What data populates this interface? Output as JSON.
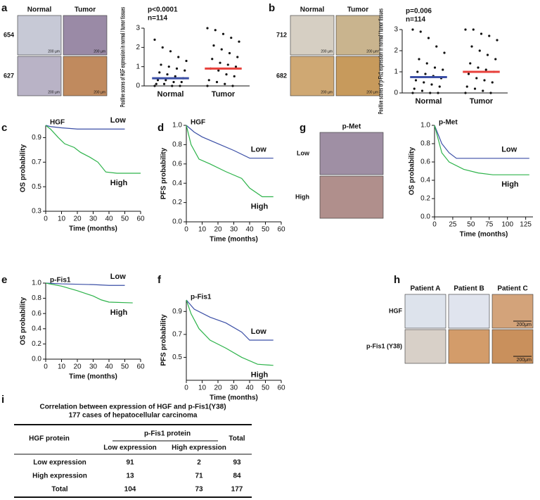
{
  "panel_labels": [
    "a",
    "b",
    "c",
    "d",
    "g",
    "e",
    "f",
    "h",
    "i"
  ],
  "scale_bar": "200 µm",
  "images": [
    {
      "columns": [
        "Normal",
        "Tumor"
      ],
      "rows": [
        "654",
        "627"
      ]
    },
    {
      "columns": [
        "Normal",
        "Tumor"
      ],
      "rows": [
        "712",
        "682"
      ]
    },
    {
      "title": "p-Met",
      "rows": [
        "Low",
        "High"
      ]
    },
    {
      "columns": [
        "Patient A",
        "Patient B",
        "Patient C"
      ],
      "rows": [
        "HGF",
        "p-Fis1 (Y38)"
      ],
      "scale_bar": "200μm"
    }
  ],
  "chart_data": [
    {
      "type": "dot",
      "ylabel": "Positive scores of HGF expression in normal / tumor tissues",
      "annotations": [
        "p<0.0001",
        "n=114"
      ],
      "categories": [
        "Normal",
        "Tumor"
      ],
      "colors": [
        "#3b4fa6",
        "#e8403b"
      ],
      "means": [
        0.4,
        0.9
      ],
      "points": [
        [
          0,
          0,
          0,
          0.1,
          0.1,
          0.2,
          0.2,
          0.3,
          0.3,
          0.4,
          0.5,
          0.6,
          0.7,
          0.8,
          0.9,
          1.0,
          1.1,
          1.3,
          1.5,
          1.8,
          2.0,
          2.4
        ],
        [
          0,
          0,
          0.1,
          0.2,
          0.3,
          0.5,
          0.6,
          0.8,
          0.9,
          1.0,
          1.1,
          1.2,
          1.4,
          1.5,
          1.7,
          1.9,
          2.1,
          2.3,
          2.5,
          2.7,
          2.9,
          3.0
        ]
      ],
      "ylim": [
        0,
        3
      ],
      "yticks": [
        0,
        1,
        2,
        3
      ]
    },
    {
      "type": "dot",
      "ylabel": "Positive scores of p-Fis1 expression in normal / tumor tissues",
      "annotations": [
        "p=0.006",
        "n=114"
      ],
      "categories": [
        "Normal",
        "Tumor"
      ],
      "colors": [
        "#3b4fa6",
        "#e8403b"
      ],
      "means": [
        0.75,
        1.0
      ],
      "points": [
        [
          0,
          0,
          0,
          0.1,
          0.2,
          0.3,
          0.4,
          0.5,
          0.6,
          0.7,
          0.8,
          0.9,
          1.0,
          1.1,
          1.2,
          1.4,
          1.6,
          1.9,
          2.2,
          2.6,
          2.9,
          3.0
        ],
        [
          0,
          0,
          0.1,
          0.2,
          0.3,
          0.5,
          0.6,
          0.7,
          0.9,
          1.0,
          1.1,
          1.2,
          1.4,
          1.6,
          1.8,
          2.0,
          2.2,
          2.5,
          2.7,
          2.8,
          3.0,
          3.0
        ]
      ],
      "ylim": [
        0,
        3
      ],
      "yticks": [
        0,
        1,
        2,
        3
      ]
    },
    {
      "type": "line",
      "title": "HGF",
      "xlabel": "Time (months)",
      "ylabel": "OS probability",
      "series": [
        {
          "name": "Low",
          "color": "#3b4fa6",
          "x": [
            0,
            3,
            10,
            20,
            30,
            40,
            50
          ],
          "values": [
            1,
            0.99,
            0.98,
            0.97,
            0.97,
            0.97,
            0.97
          ]
        },
        {
          "name": "High",
          "color": "#2db34a",
          "x": [
            0,
            3,
            8,
            12,
            18,
            22,
            28,
            33,
            38,
            45,
            60
          ],
          "values": [
            1,
            0.97,
            0.9,
            0.85,
            0.82,
            0.78,
            0.74,
            0.7,
            0.62,
            0.61,
            0.61
          ]
        }
      ],
      "xlim": [
        0,
        60
      ],
      "xticks": [
        0,
        10,
        20,
        30,
        40,
        50,
        60
      ],
      "ylim": [
        0.3,
        1.0
      ],
      "yticks": [
        0.3,
        0.5,
        0.7,
        0.9
      ]
    },
    {
      "type": "line",
      "title": "HGF",
      "xlabel": "Time (months)",
      "ylabel": "PFS probability",
      "series": [
        {
          "name": "Low",
          "color": "#3b4fa6",
          "x": [
            0,
            5,
            10,
            20,
            30,
            40,
            55
          ],
          "values": [
            1,
            0.93,
            0.88,
            0.81,
            0.74,
            0.66,
            0.66
          ]
        },
        {
          "name": "High",
          "color": "#2db34a",
          "x": [
            0,
            3,
            8,
            15,
            25,
            35,
            40,
            48,
            55
          ],
          "values": [
            1,
            0.8,
            0.65,
            0.6,
            0.52,
            0.45,
            0.35,
            0.26,
            0.26
          ]
        }
      ],
      "xlim": [
        0,
        60
      ],
      "xticks": [
        0,
        10,
        20,
        30,
        40,
        50,
        60
      ],
      "ylim": [
        0,
        1
      ],
      "yticks": [
        {
          "value": 0,
          "label": "0.0"
        },
        0.2,
        0.4,
        0.6,
        0.8,
        {
          "value": 1,
          "label": "1.0"
        }
      ]
    },
    {
      "type": "line",
      "title": "p-Met",
      "xlabel": "Time (months)",
      "ylabel": "OS probability",
      "series": [
        {
          "name": "Low",
          "color": "#3b4fa6",
          "x": [
            0,
            5,
            10,
            20,
            30,
            60,
            130
          ],
          "values": [
            1,
            0.9,
            0.8,
            0.7,
            0.64,
            0.64,
            0.64
          ]
        },
        {
          "name": "High",
          "color": "#2db34a",
          "x": [
            0,
            5,
            10,
            20,
            40,
            60,
            80,
            130
          ],
          "values": [
            1,
            0.85,
            0.7,
            0.6,
            0.52,
            0.48,
            0.46,
            0.46
          ]
        }
      ],
      "xlim": [
        0,
        135
      ],
      "xticks": [
        0,
        25,
        50,
        75,
        100,
        125
      ],
      "ylim": [
        0,
        1
      ],
      "yticks": [
        {
          "value": 0,
          "label": "0.0"
        },
        0.2,
        0.4,
        0.6,
        0.8,
        {
          "value": 1,
          "label": "1.0"
        }
      ]
    },
    {
      "type": "line",
      "title": "p-Fis1",
      "xlabel": "Time (months)",
      "ylabel": "OS probability",
      "series": [
        {
          "name": "Low",
          "color": "#3b4fa6",
          "x": [
            0,
            10,
            30,
            40,
            50
          ],
          "values": [
            1,
            0.99,
            0.98,
            0.97,
            0.97
          ]
        },
        {
          "name": "High",
          "color": "#2db34a",
          "x": [
            0,
            10,
            20,
            30,
            35,
            40,
            55
          ],
          "values": [
            1,
            0.96,
            0.9,
            0.83,
            0.78,
            0.75,
            0.74
          ]
        }
      ],
      "xlim": [
        0,
        60
      ],
      "xticks": [
        0,
        10,
        20,
        30,
        40,
        50,
        60
      ],
      "ylim": [
        0,
        1
      ],
      "yticks": [
        {
          "value": 0,
          "label": "0.0"
        },
        0.2,
        0.4,
        0.6,
        0.8,
        {
          "value": 1,
          "label": "1.0"
        }
      ]
    },
    {
      "type": "line",
      "title": "p-Fis1",
      "xlabel": "Time (months)",
      "ylabel": "PFS probability",
      "series": [
        {
          "name": "Low",
          "color": "#3b4fa6",
          "x": [
            0,
            5,
            15,
            25,
            35,
            40,
            55
          ],
          "values": [
            1,
            0.92,
            0.85,
            0.8,
            0.72,
            0.65,
            0.65
          ]
        },
        {
          "name": "High",
          "color": "#2db34a",
          "x": [
            0,
            3,
            8,
            15,
            25,
            35,
            45,
            55
          ],
          "values": [
            1,
            0.88,
            0.75,
            0.65,
            0.58,
            0.5,
            0.44,
            0.43
          ]
        }
      ],
      "xlim": [
        0,
        60
      ],
      "xticks": [
        0,
        10,
        20,
        30,
        40,
        50,
        60
      ],
      "ylim": [
        0.3,
        1.0
      ],
      "yticks": [
        0.5,
        0.7,
        0.9
      ]
    }
  ],
  "table": {
    "title": [
      "Correlation between expression of HGF and p-Fis1(Y38)",
      "177 cases of  hepatocellular carcinoma"
    ],
    "row_header": "HGF protein",
    "group_header": "p-Fis1 protein",
    "columns": [
      "Low expression",
      "High expression"
    ],
    "total_header": "Total",
    "rows": [
      [
        "Low expression",
        91,
        2,
        93
      ],
      [
        "High expression",
        13,
        71,
        84
      ],
      [
        "Total",
        104,
        73,
        177
      ]
    ]
  }
}
